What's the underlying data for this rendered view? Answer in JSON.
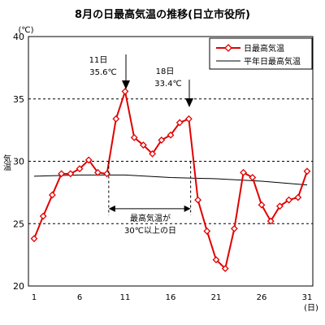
{
  "chart_data": {
    "type": "line",
    "title": "8月の日最高気温の推移(日立市役所)",
    "ylabel": "気温",
    "yunit": "(℃)",
    "xunit": "(日)",
    "ylim": [
      20,
      40
    ],
    "xlim": [
      1,
      31
    ],
    "y_ticks": [
      20,
      25,
      30,
      35,
      40
    ],
    "x_ticks": [
      1,
      6,
      11,
      16,
      21,
      26,
      31
    ],
    "grid_lines": [
      25,
      30,
      35
    ],
    "legend_position": "top-right",
    "series": [
      {
        "name": "日最高気温",
        "color": "#e00000",
        "marker": "diamond",
        "x": [
          1,
          2,
          3,
          4,
          5,
          6,
          7,
          8,
          9,
          10,
          11,
          12,
          13,
          14,
          15,
          16,
          17,
          18,
          19,
          20,
          21,
          22,
          23,
          24,
          25,
          26,
          27,
          28,
          29,
          30,
          31
        ],
        "values": [
          23.8,
          25.6,
          27.3,
          29.0,
          29.0,
          29.4,
          30.1,
          29.1,
          29.0,
          33.4,
          35.6,
          31.9,
          31.3,
          30.6,
          31.7,
          32.1,
          33.1,
          33.4,
          26.9,
          24.4,
          22.1,
          21.4,
          24.6,
          29.1,
          28.7,
          26.5,
          25.2,
          26.4,
          26.9,
          27.1,
          29.2
        ]
      },
      {
        "name": "平年日最高気温",
        "color": "#000000",
        "x": [
          1,
          6,
          11,
          16,
          21,
          26,
          31
        ],
        "values": [
          28.8,
          28.9,
          28.9,
          28.7,
          28.6,
          28.4,
          28.1
        ]
      }
    ],
    "annotations": {
      "peak1_day": "11日",
      "peak1_temp": "35.6℃",
      "peak2_day": "18日",
      "peak2_temp": "33.4℃",
      "span_line1": "最高気温が",
      "span_line2": "30℃以上の日",
      "span_range": [
        9.2,
        18.2
      ]
    }
  }
}
